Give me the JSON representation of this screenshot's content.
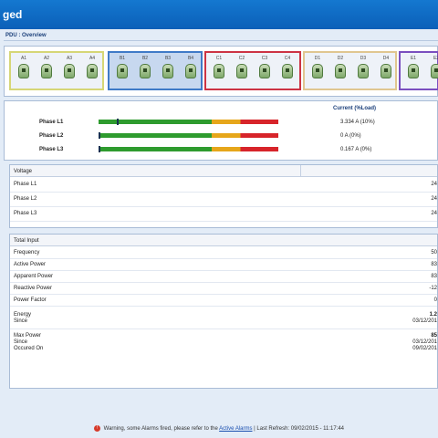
{
  "window": {
    "title": "ged"
  },
  "breadcrumb": "PDU : Overview",
  "outlet_groups": [
    {
      "color": "#d6d676",
      "outlets": [
        "A1",
        "A2",
        "A3",
        "A4"
      ]
    },
    {
      "color": "#3f7ac7",
      "outlets": [
        "B1",
        "B2",
        "B3",
        "B4"
      ]
    },
    {
      "color": "#cc3344",
      "outlets": [
        "C1",
        "C2",
        "C3",
        "C4"
      ]
    },
    {
      "color": "#e0c690",
      "outlets": [
        "D1",
        "D2",
        "D3",
        "D4"
      ]
    },
    {
      "color": "#7a4fbf",
      "outlets": [
        "E1",
        "E2"
      ]
    }
  ],
  "phases": {
    "header": "Current (%Load)",
    "rows": [
      {
        "name": "Phase L1",
        "value": "3.334 A (10%)",
        "load_fraction": 0.1
      },
      {
        "name": "Phase L2",
        "value": "0 A (0%)",
        "load_fraction": 0.0
      },
      {
        "name": "Phase L3",
        "value": "0.167 A (0%)",
        "load_fraction": 0.0
      }
    ]
  },
  "voltage": {
    "title": "Voltage",
    "rows": [
      {
        "label": "Phase L1",
        "value": "24"
      },
      {
        "label": "Phase L2",
        "value": "24"
      },
      {
        "label": "Phase L3",
        "value": "24"
      }
    ]
  },
  "total_input": {
    "title": "Total Input",
    "rows": [
      {
        "label": "Frequency",
        "value": "50"
      },
      {
        "label": "Active Power",
        "value": "83"
      },
      {
        "label": "Apparent Power",
        "value": "83"
      },
      {
        "label": "Reactive Power",
        "value": "-12"
      },
      {
        "label": "Power Factor",
        "value": "0"
      }
    ],
    "energy": {
      "label": "Energy",
      "value": "1.2",
      "since_label": "Since",
      "since_value": "03/12/201"
    },
    "max_power": {
      "label": "Max Power",
      "value": "85",
      "since_label": "Since",
      "since_value": "03/12/201",
      "occured_label": "Occured On",
      "occured_value": "09/02/201"
    }
  },
  "footer": {
    "warning": "Warning, some Alarms fired, please refer to the",
    "link": "Active Alarms",
    "refresh": "| Last Refresh: 09/02/2015 - 11:17:44"
  },
  "colors": {
    "titlebar": "#1478d0",
    "ok": "#2e9b2e",
    "warn": "#e6a61a",
    "crit": "#d7242a"
  }
}
